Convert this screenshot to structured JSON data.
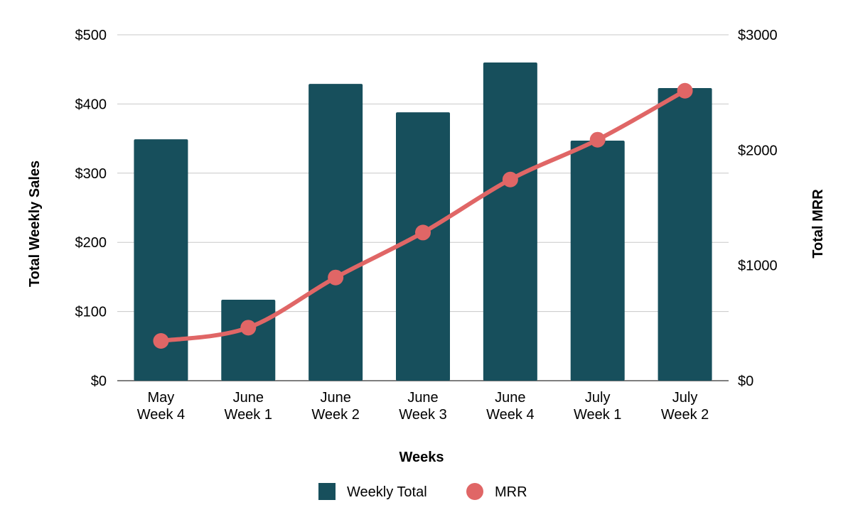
{
  "chart_data": {
    "type": "bar",
    "title": "",
    "categories": [
      [
        "May",
        "Week 4"
      ],
      [
        "June",
        "Week 1"
      ],
      [
        "June",
        "Week 2"
      ],
      [
        "June",
        "Week 3"
      ],
      [
        "June",
        "Week 4"
      ],
      [
        "July",
        "Week 1"
      ],
      [
        "July",
        "Week 2"
      ]
    ],
    "xlabel": "Weeks",
    "ylabel_left": "Total Weekly Sales",
    "ylabel_right": "Total MRR",
    "ylim_left": [
      0,
      500
    ],
    "ylim_right": [
      0,
      3000
    ],
    "yticks_left": [
      "$0",
      "$100",
      "$200",
      "$300",
      "$400",
      "$500"
    ],
    "yticks_right": [
      "$0",
      "$1000",
      "$2000",
      "$3000"
    ],
    "grid": true,
    "legend_position": "bottom",
    "series": [
      {
        "name": "Weekly Total",
        "type": "bar",
        "axis": "left",
        "color": "#174f5c",
        "values": [
          349,
          117,
          429,
          388,
          460,
          347,
          423
        ]
      },
      {
        "name": "MRR",
        "type": "line",
        "axis": "right",
        "color": "#e06666",
        "values": [
          345,
          460,
          895,
          1285,
          1745,
          2090,
          2515
        ]
      }
    ]
  }
}
